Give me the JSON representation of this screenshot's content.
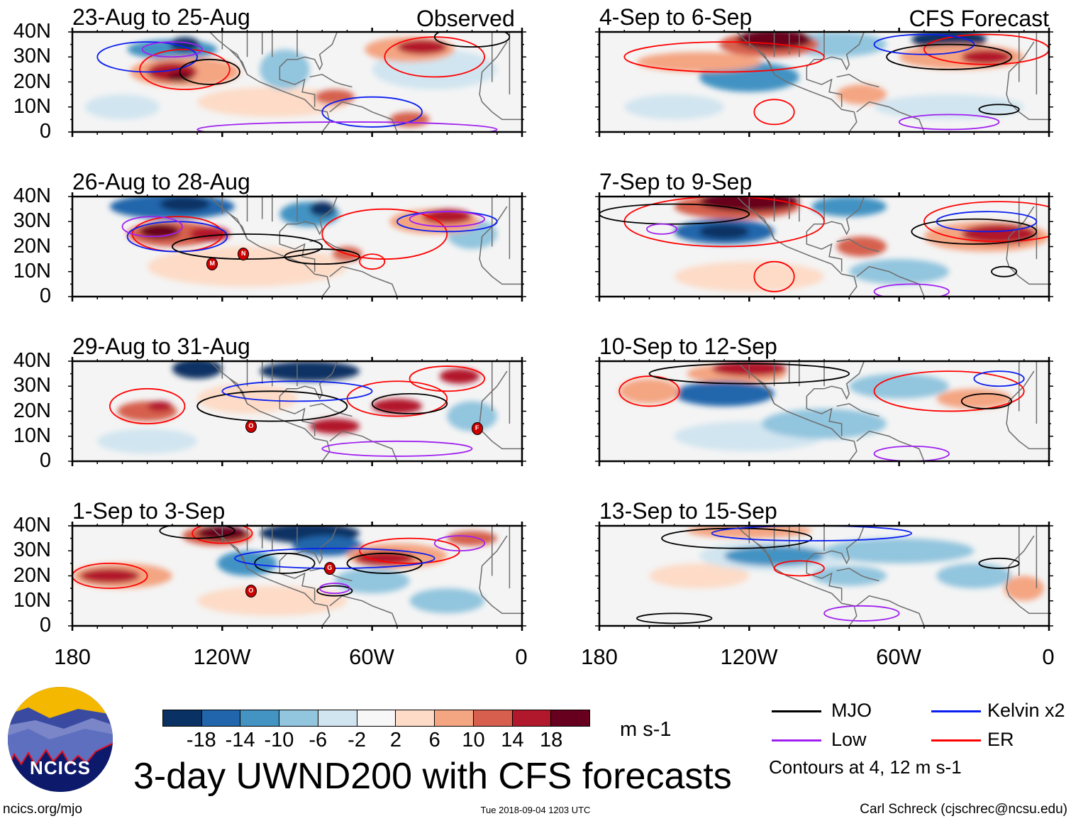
{
  "colors": {
    "levels": [
      "#0a3163",
      "#2166ac",
      "#4393c3",
      "#92c5de",
      "#d1e5f0",
      "#f7f7f7",
      "#fddbc7",
      "#f4a582",
      "#d6604d",
      "#b2182b",
      "#67001f"
    ],
    "mjo": "#000000",
    "kelvin": "#0a1ef0",
    "low": "#a020f0",
    "er": "#ff0000",
    "coast": "#6e6e6e"
  },
  "header": {
    "observed_label": "Observed",
    "forecast_label": "CFS Forecast"
  },
  "axes": {
    "lat_labels": [
      "40N",
      "30N",
      "20N",
      "10N",
      "0"
    ],
    "lon_labels": [
      "180",
      "120W",
      "60W",
      "0"
    ]
  },
  "panels_observed": [
    {
      "title": "23-Aug to 25-Aug",
      "storms": []
    },
    {
      "title": "26-Aug to 28-Aug",
      "storms": [
        {
          "letter": "M",
          "lon": -124,
          "lat": 13
        },
        {
          "letter": "N",
          "lon": -111.5,
          "lat": 17
        }
      ]
    },
    {
      "title": "29-Aug to 31-Aug",
      "storms": [
        {
          "letter": "O",
          "lon": -108.5,
          "lat": 14
        },
        {
          "letter": "F",
          "lon": -18,
          "lat": 13
        }
      ]
    },
    {
      "title": "1-Sep to 3-Sep",
      "storms": [
        {
          "letter": "G",
          "lon": -77,
          "lat": 23
        },
        {
          "letter": "O",
          "lon": -108.5,
          "lat": 14
        }
      ]
    }
  ],
  "panels_forecast": [
    {
      "title": "4-Sep to 6-Sep",
      "storms": []
    },
    {
      "title": "7-Sep to 9-Sep",
      "storms": []
    },
    {
      "title": "10-Sep to 12-Sep",
      "storms": []
    },
    {
      "title": "13-Sep to 15-Sep",
      "storms": []
    }
  ],
  "colorbar": {
    "labels": [
      "-18",
      "-14",
      "-10",
      "-6",
      "-2",
      "2",
      "6",
      "10",
      "14",
      "18"
    ],
    "units": "m s-1"
  },
  "legend": {
    "mjo": "MJO",
    "kelvin": "Kelvin x2",
    "low": "Low",
    "er": "ER",
    "contours_note": "Contours at 4, 12 m s-1"
  },
  "logo": {
    "text": "NCICS"
  },
  "footer": {
    "title": "3-day UWND200 with CFS forecasts",
    "url": "ncics.org/mjo",
    "timestamp": "Tue 2018-09-04 1203 UTC",
    "credit": "Carl Schreck (cjschrec@ncsu.edu)"
  }
}
